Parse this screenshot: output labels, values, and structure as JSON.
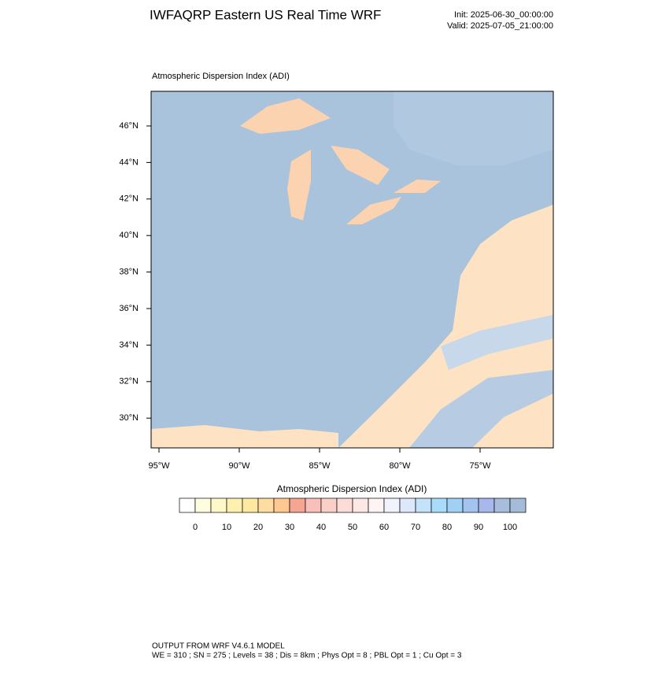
{
  "header": {
    "title": "IWFAQRP Eastern US Real Time WRF",
    "init": "Init: 2025-06-30_00:00:00",
    "valid": "Valid: 2025-07-05_21:00:00"
  },
  "map": {
    "subtitle": "Atmospheric Dispersion Index   (ADI)",
    "lat_labels": [
      "46°N",
      "44°N",
      "42°N",
      "40°N",
      "38°N",
      "36°N",
      "34°N",
      "32°N",
      "30°N"
    ],
    "lon_labels": [
      "95°W",
      "90°W",
      "85°W",
      "80°W",
      "75°W"
    ]
  },
  "colorbar": {
    "title": "Atmospheric Dispersion Index (ADI)",
    "ticks": [
      0,
      10,
      20,
      30,
      40,
      50,
      60,
      70,
      80,
      90,
      100
    ],
    "colors": [
      "#ffffff",
      "#fffde0",
      "#fff8c8",
      "#fff0b0",
      "#ffe8a0",
      "#ffdca0",
      "#ffc890",
      "#f4a690",
      "#f8c0b8",
      "#f9cfc8",
      "#fbdcd6",
      "#fde8e4",
      "#fff4f4",
      "#f0f2fc",
      "#dde8fb",
      "#c4e2fa",
      "#a8dcf8",
      "#a0d0f4",
      "#a4c4f0",
      "#a8b8ec",
      "#a8bcdc",
      "#a4bcd8"
    ]
  },
  "footer": {
    "line1": "OUTPUT FROM WRF V4.6.1 MODEL",
    "line2": "WE = 310 ; SN = 275 ; Levels = 38 ; Dis = 8km ; Phys Opt = 8 ; PBL Opt = 1 ; Cu Opt = 3"
  }
}
